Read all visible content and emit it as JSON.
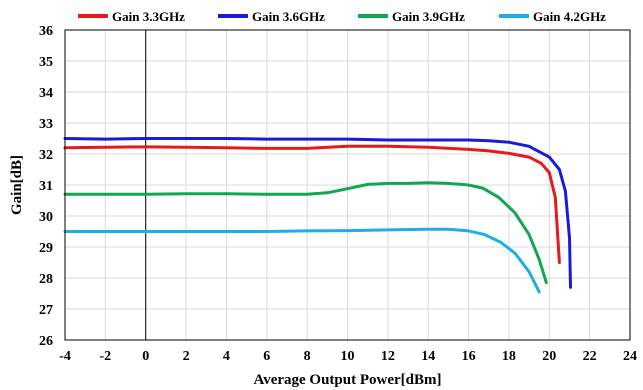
{
  "chart_data": {
    "type": "line",
    "xlabel": "Average Output Power[dBm]",
    "ylabel": "Gain[dB]",
    "xlim": [
      -4,
      24
    ],
    "ylim": [
      26,
      36
    ],
    "xticks": [
      -4,
      -2,
      0,
      2,
      4,
      6,
      8,
      10,
      12,
      14,
      16,
      18,
      20,
      22,
      24
    ],
    "yticks": [
      26,
      27,
      28,
      29,
      30,
      31,
      32,
      33,
      34,
      35,
      36
    ],
    "grid": true,
    "legend_position": "top",
    "vertical_reference_line_x": 0,
    "series": [
      {
        "name": "Gain 3.3GHz",
        "color": "#e8191c",
        "x": [
          -4,
          -2,
          0,
          2,
          4,
          6,
          8,
          10,
          12,
          14,
          16,
          17,
          18,
          19,
          19.6,
          20,
          20.3,
          20.5
        ],
        "y": [
          32.2,
          32.22,
          32.23,
          32.22,
          32.2,
          32.18,
          32.18,
          32.25,
          32.25,
          32.22,
          32.15,
          32.1,
          32.02,
          31.9,
          31.7,
          31.4,
          30.6,
          28.5
        ]
      },
      {
        "name": "Gain 3.6GHz",
        "color": "#1a1adc",
        "x": [
          -4,
          -2,
          0,
          2,
          4,
          6,
          8,
          10,
          12,
          14,
          16,
          17,
          18,
          19,
          20,
          20.5,
          20.8,
          21,
          21.05
        ],
        "y": [
          32.5,
          32.48,
          32.5,
          32.5,
          32.5,
          32.48,
          32.48,
          32.48,
          32.45,
          32.45,
          32.45,
          32.43,
          32.38,
          32.25,
          31.9,
          31.5,
          30.8,
          29.3,
          27.7
        ]
      },
      {
        "name": "Gain 3.9GHz",
        "color": "#12a651",
        "x": [
          -4,
          -2,
          0,
          2,
          4,
          6,
          8,
          9,
          10,
          11,
          12,
          13,
          14,
          15,
          16,
          16.7,
          17.5,
          18.3,
          19,
          19.5,
          19.85
        ],
        "y": [
          30.7,
          30.7,
          30.7,
          30.72,
          30.72,
          30.7,
          30.7,
          30.75,
          30.88,
          31.02,
          31.05,
          31.05,
          31.07,
          31.05,
          31.0,
          30.9,
          30.6,
          30.1,
          29.4,
          28.6,
          27.85
        ]
      },
      {
        "name": "Gain 4.2GHz",
        "color": "#1eaee6",
        "x": [
          -4,
          -2,
          0,
          2,
          4,
          6,
          8,
          10,
          12,
          14,
          15,
          16,
          16.8,
          17.6,
          18.3,
          19,
          19.5
        ],
        "y": [
          29.5,
          29.5,
          29.5,
          29.5,
          29.5,
          29.5,
          29.52,
          29.53,
          29.55,
          29.57,
          29.57,
          29.52,
          29.4,
          29.15,
          28.8,
          28.2,
          27.55
        ]
      }
    ]
  }
}
